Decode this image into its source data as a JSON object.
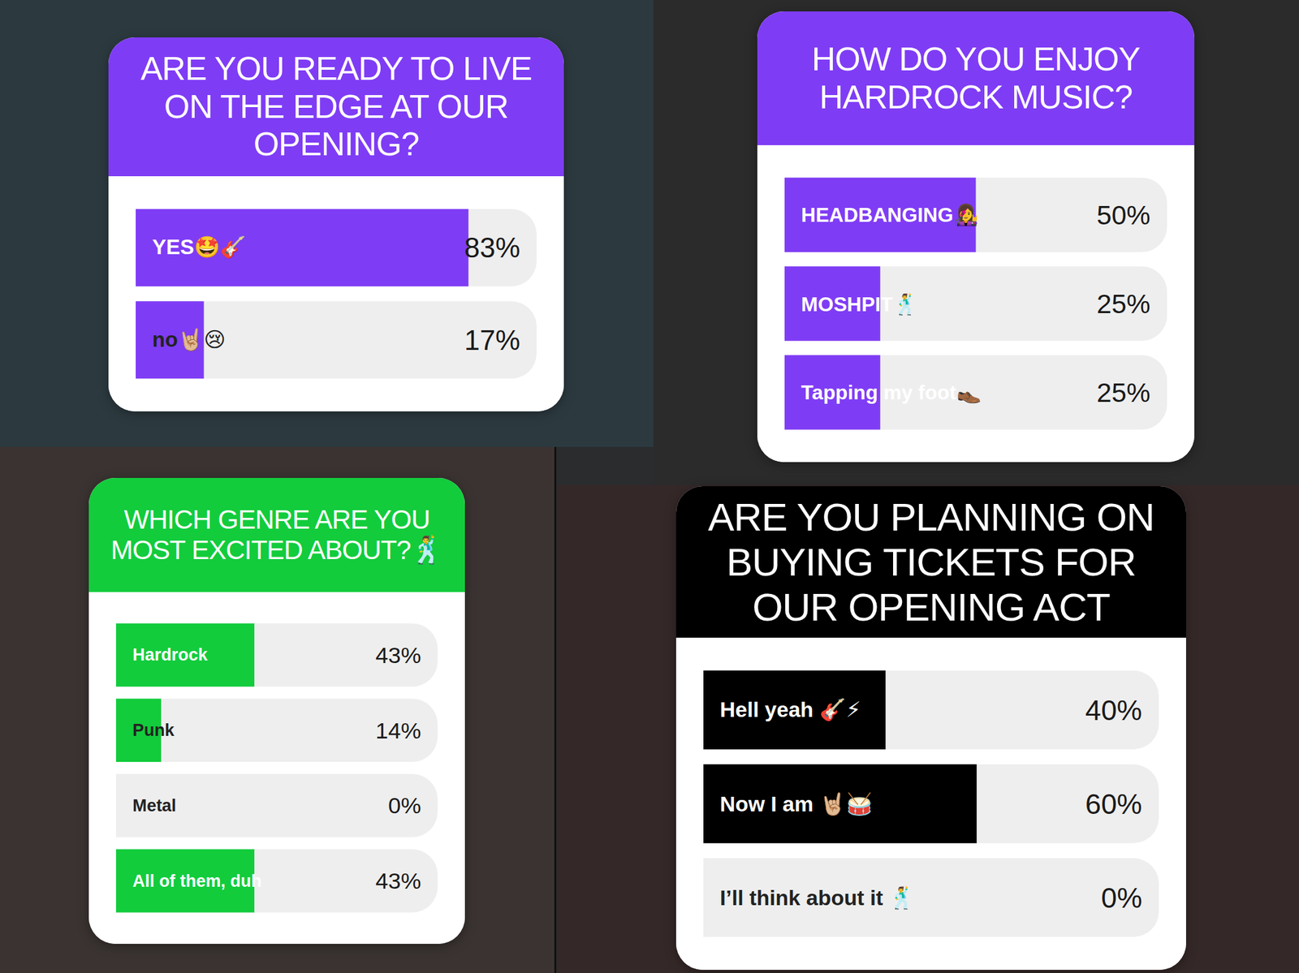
{
  "chart_data": [
    {
      "type": "bar",
      "orientation": "horizontal",
      "title": "ARE YOU READY TO LIVE ON THE EDGE AT OUR OPENING?",
      "categories": [
        "YES🤩🎸",
        "no🤘🏼😢"
      ],
      "values": [
        83,
        17
      ],
      "value_labels": [
        "83%",
        "17%"
      ],
      "color": "#7f3cf5",
      "xlim": [
        0,
        100
      ],
      "data_labels": true,
      "tick_labels": false,
      "grid": false
    },
    {
      "type": "bar",
      "orientation": "horizontal",
      "title": "HOW DO YOU ENJOY HARDROCK MUSIC?",
      "categories": [
        "HEADBANGING👩‍🎤",
        "MOSHPIT🕺",
        "Tapping my foot👞"
      ],
      "values": [
        50,
        25,
        25
      ],
      "value_labels": [
        "50%",
        "25%",
        "25%"
      ],
      "color": "#7f3cf5",
      "xlim": [
        0,
        100
      ],
      "data_labels": true,
      "tick_labels": false,
      "grid": false
    },
    {
      "type": "bar",
      "orientation": "horizontal",
      "title": "WHICH GENRE ARE YOU MOST EXCITED ABOUT?🕺",
      "categories": [
        "Hardrock",
        "Punk",
        "Metal",
        "All of them, duh"
      ],
      "values": [
        43,
        14,
        0,
        43
      ],
      "value_labels": [
        "43%",
        "14%",
        "0%",
        "43%"
      ],
      "color": "#12cc3c",
      "xlim": [
        0,
        100
      ],
      "data_labels": true,
      "tick_labels": false,
      "grid": false
    },
    {
      "type": "bar",
      "orientation": "horizontal",
      "title": "ARE YOU PLANNING ON BUYING TICKETS FOR OUR OPENING ACT",
      "categories": [
        "Hell yeah 🎸⚡",
        "Now I am 🤘🏼🥁",
        "I’ll think about it 🕺"
      ],
      "values": [
        40,
        60,
        0
      ],
      "value_labels": [
        "40%",
        "60%",
        "0%"
      ],
      "color": "#000000",
      "xlim": [
        0,
        100
      ],
      "data_labels": true,
      "tick_labels": false,
      "grid": false
    }
  ]
}
